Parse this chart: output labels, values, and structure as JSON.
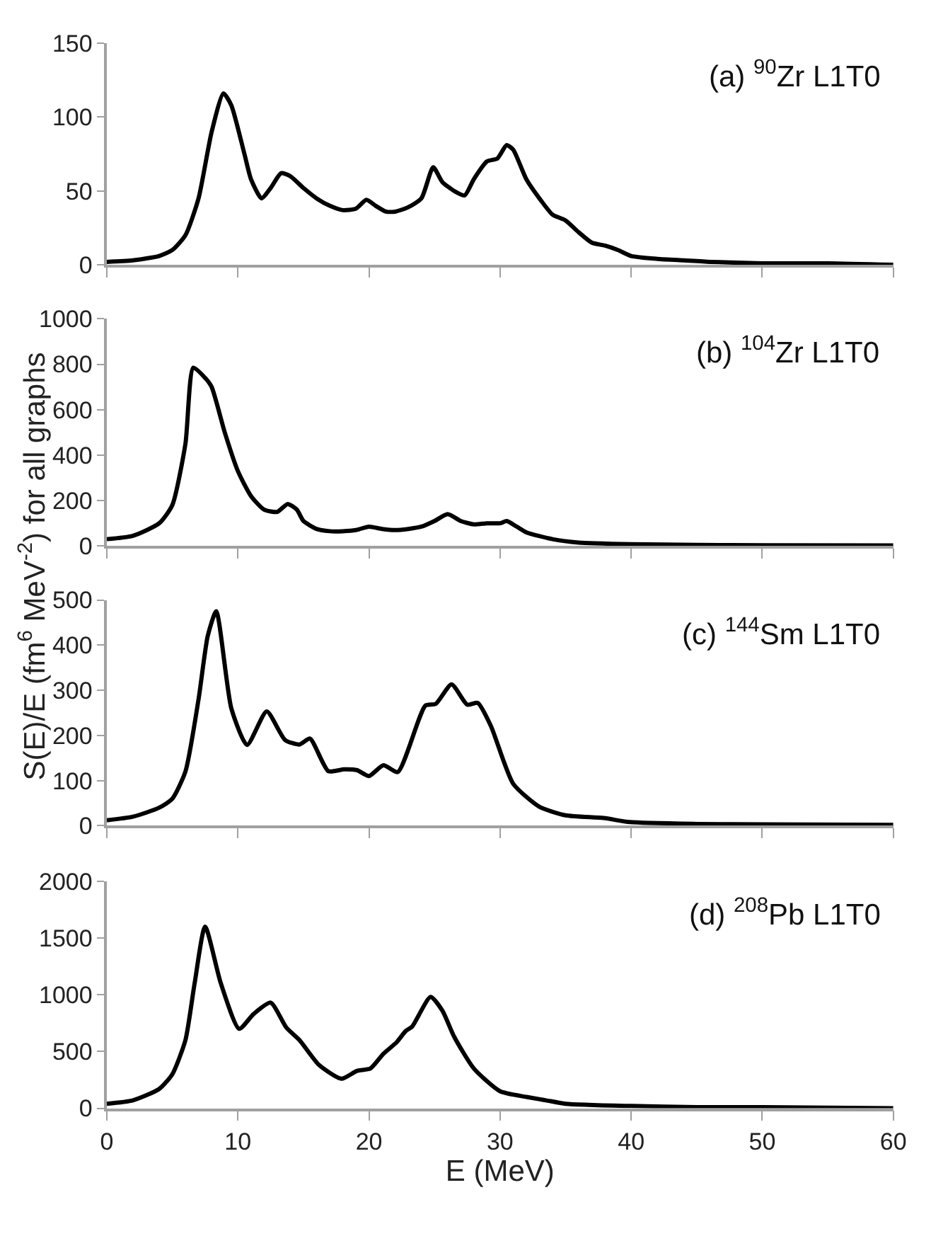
{
  "chart_data": [
    {
      "type": "line",
      "title": "(a) $^{90}$Zr L1T0",
      "xlim": [
        0,
        60
      ],
      "xticks": [
        0,
        10,
        20,
        30,
        40,
        50,
        60
      ],
      "ylim": [
        0,
        150
      ],
      "yticks": [
        0,
        50,
        100,
        150
      ],
      "tick_labels": "y",
      "grid": false,
      "x": [
        0,
        2,
        4,
        5,
        6,
        7,
        8,
        8.9,
        9.5,
        10.5,
        11,
        11.8,
        12.5,
        13.3,
        14,
        15,
        16,
        17,
        18,
        19,
        19.8,
        20.5,
        21.3,
        22,
        23,
        24,
        24.9,
        25.6,
        26.5,
        27.3,
        28,
        29,
        29.8,
        30.5,
        31,
        32,
        33,
        34,
        35,
        36,
        37,
        38,
        39,
        40,
        42,
        44,
        46,
        50,
        55,
        60
      ],
      "series": [
        {
          "color": "#000000",
          "values": [
            2,
            3,
            6,
            10,
            20,
            45,
            90,
            116,
            108,
            75,
            58,
            45,
            52,
            62,
            60,
            52,
            45,
            40,
            37,
            38,
            44,
            40,
            36,
            36,
            39,
            45,
            66,
            56,
            50,
            47,
            58,
            70,
            72,
            81,
            78,
            58,
            45,
            34,
            30,
            22,
            15,
            13,
            10,
            6,
            4,
            3,
            2,
            1,
            1,
            0
          ]
        }
      ]
    },
    {
      "type": "line",
      "title": "(b) $^{104}$Zr L1T0",
      "ylabel": "S(E)/E (fm$^{6}$ MeV$^{-2}$) for all graphs",
      "xlim": [
        0,
        60
      ],
      "xticks": [
        0,
        10,
        20,
        30,
        40,
        50,
        60
      ],
      "ylim": [
        0,
        1000
      ],
      "yticks": [
        0,
        200,
        400,
        600,
        800,
        1000
      ],
      "tick_labels": "y",
      "grid": false,
      "x": [
        0,
        2,
        4,
        5,
        6,
        6.6,
        7.5,
        8,
        9,
        10,
        11,
        12,
        13,
        13.8,
        14.5,
        15,
        16,
        17,
        18,
        19,
        20,
        21,
        22,
        23,
        24,
        25,
        26,
        27,
        28,
        29,
        30,
        30.5,
        31,
        32,
        34,
        36,
        40,
        45,
        50,
        60
      ],
      "series": [
        {
          "color": "#000000",
          "values": [
            30,
            45,
            100,
            180,
            450,
            785,
            740,
            700,
            500,
            330,
            220,
            160,
            150,
            185,
            160,
            110,
            75,
            65,
            65,
            70,
            85,
            75,
            70,
            75,
            85,
            110,
            140,
            110,
            95,
            100,
            100,
            110,
            95,
            60,
            30,
            15,
            8,
            5,
            3,
            2
          ]
        }
      ]
    },
    {
      "type": "line",
      "title": "(c) $^{144}$Sm L1T0",
      "xlim": [
        0,
        60
      ],
      "xticks": [
        0,
        10,
        20,
        30,
        40,
        50,
        60
      ],
      "ylim": [
        0,
        500
      ],
      "yticks": [
        0,
        100,
        200,
        300,
        400,
        500
      ],
      "tick_labels": "y",
      "grid": false,
      "x": [
        0,
        2,
        4,
        5,
        6,
        7,
        7.7,
        8.35,
        9.5,
        10.7,
        12.2,
        13.6,
        14.7,
        15.5,
        16.9,
        18.1,
        19.1,
        20,
        21.1,
        22.2,
        24.3,
        25.1,
        26.3,
        27.5,
        28.3,
        29.3,
        31,
        33,
        35,
        37.9,
        39.9,
        45,
        50,
        60
      ],
      "series": [
        {
          "color": "#000000",
          "values": [
            12,
            20,
            40,
            60,
            120,
            280,
            420,
            475,
            260,
            179,
            253,
            190,
            180,
            193,
            121,
            125,
            123,
            110,
            134,
            119,
            266,
            270,
            313,
            268,
            272,
            221,
            93,
            42,
            23,
            17,
            8,
            4,
            3,
            2
          ]
        }
      ]
    },
    {
      "type": "line",
      "title": "(d) $^{208}$Pb L1T0",
      "xlabel": "E (MeV)",
      "xlim": [
        0,
        60
      ],
      "xticks": [
        0,
        10,
        20,
        30,
        40,
        50,
        60
      ],
      "ylim": [
        0,
        2000
      ],
      "yticks": [
        0,
        500,
        1000,
        1500,
        2000
      ],
      "grid": false,
      "x": [
        0,
        2,
        4,
        5,
        6,
        6.7,
        7.5,
        8.7,
        10.1,
        11.2,
        12.5,
        13.7,
        14.7,
        16.2,
        17.9,
        19.1,
        20.1,
        21.1,
        22.1,
        22.8,
        23.3,
        24.7,
        25.6,
        26.5,
        28,
        30,
        32,
        33.5,
        35,
        40,
        45,
        50,
        60
      ],
      "series": [
        {
          "color": "#000000",
          "values": [
            40,
            70,
            170,
            300,
            600,
            1100,
            1600,
            1100,
            700,
            830,
            930,
            710,
            600,
            380,
            260,
            330,
            350,
            480,
            580,
            680,
            720,
            980,
            860,
            630,
            350,
            150,
            100,
            70,
            40,
            20,
            10,
            10,
            0
          ]
        }
      ]
    }
  ]
}
